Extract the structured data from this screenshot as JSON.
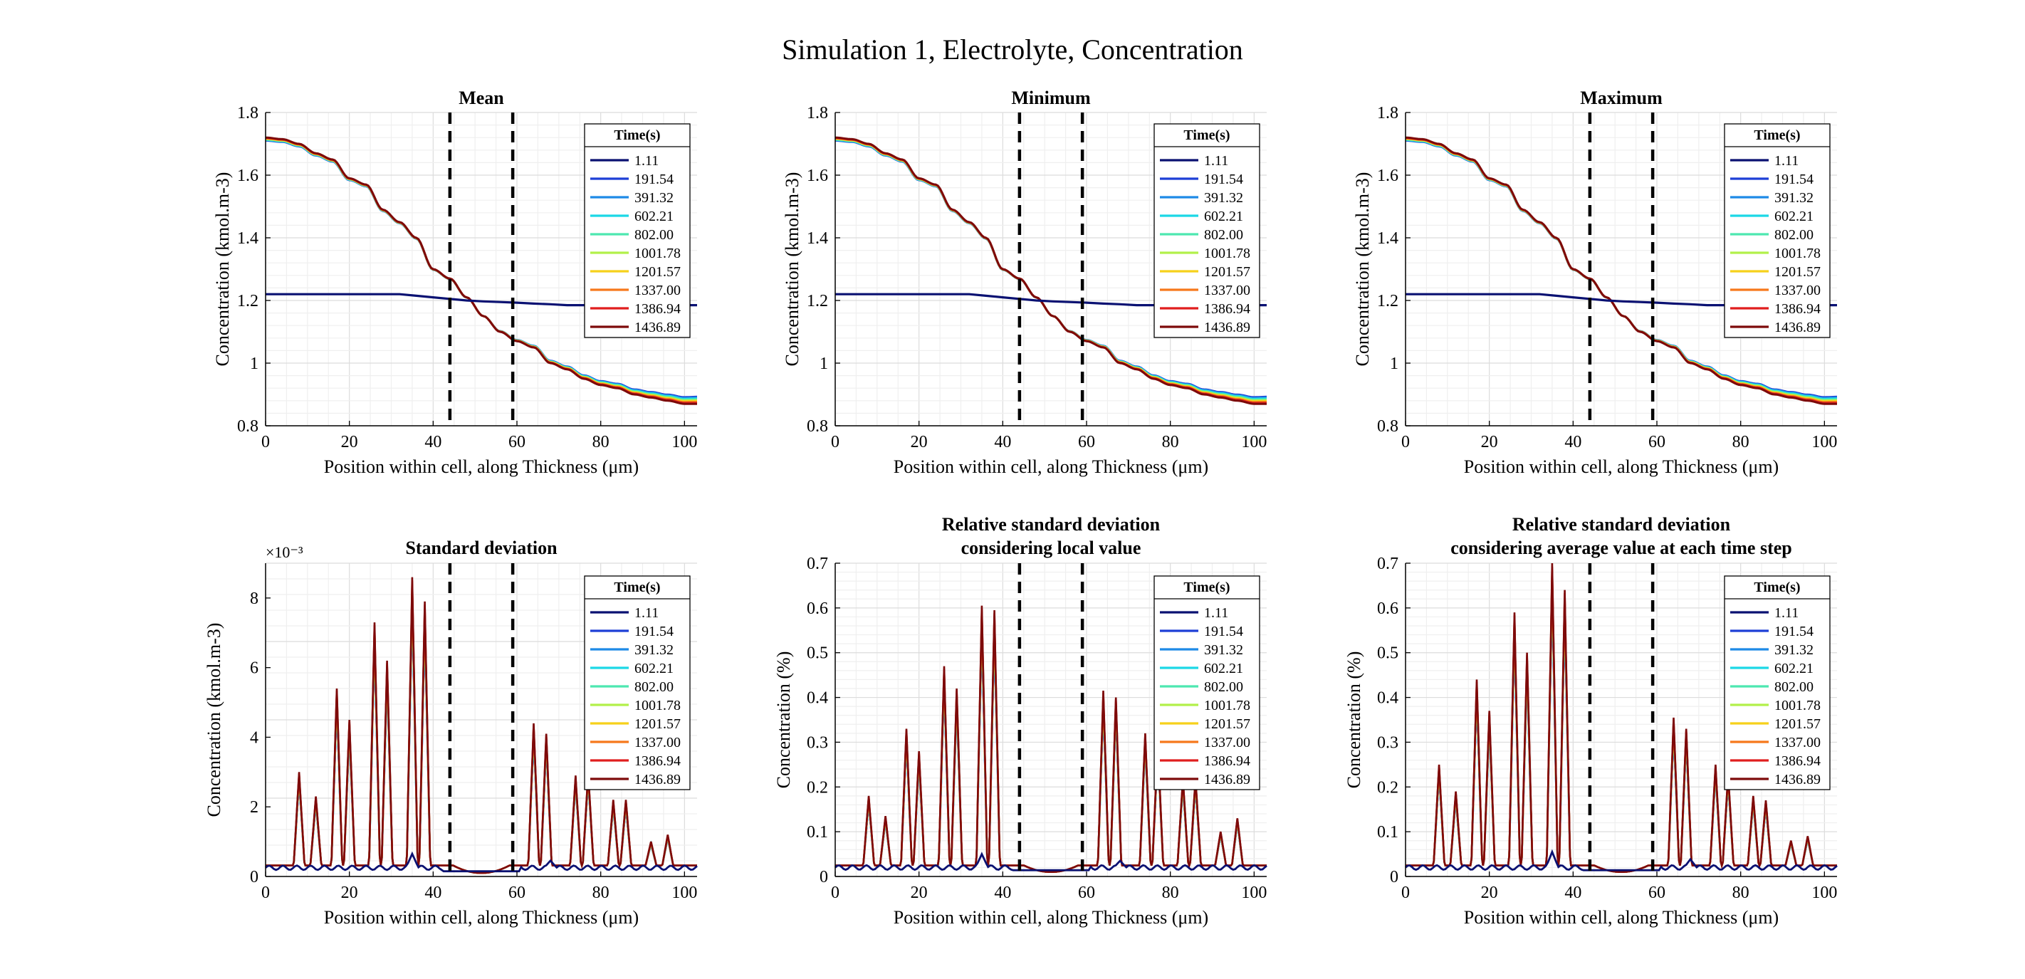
{
  "figure_title": "Simulation 1, Electrolyte, Concentration",
  "legend": {
    "title": "Time(s)",
    "entries": [
      "1.11",
      "191.54",
      "391.32",
      "602.21",
      "802.00",
      "1001.78",
      "1201.57",
      "1337.00",
      "1386.94",
      "1436.89"
    ],
    "colors": [
      "#0a1172",
      "#1d3fd6",
      "#1e8ae6",
      "#1bd8e6",
      "#4de8b0",
      "#b2f04a",
      "#f6d11b",
      "#f6781b",
      "#e01e1e",
      "#7d0a0a"
    ],
    "placement": "top-right"
  },
  "chart_data": [
    {
      "type": "line",
      "title": "Mean",
      "xlabel": "Position within cell, along Thickness (μm)",
      "ylabel": "Concentration (kmol.m-3)",
      "xlim": [
        0,
        103
      ],
      "ylim": [
        0.8,
        1.8
      ],
      "xticks": [
        "0",
        "20",
        "40",
        "60",
        "80",
        "100"
      ],
      "yticks": [
        "0.8",
        "1",
        "1.2",
        "1.4",
        "1.6",
        "1.8"
      ],
      "grid": true,
      "vlines": [
        44,
        59
      ],
      "kind": "conc",
      "x": [
        0,
        4,
        8,
        12,
        16,
        20,
        24,
        28,
        32,
        36,
        40,
        44,
        48,
        52,
        56,
        60,
        64,
        68,
        72,
        76,
        80,
        84,
        88,
        92,
        96,
        100,
        103
      ],
      "series": [
        {
          "name": "1.11",
          "values": [
            1.22,
            1.22,
            1.22,
            1.22,
            1.22,
            1.22,
            1.22,
            1.22,
            1.22,
            1.215,
            1.21,
            1.205,
            1.2,
            1.197,
            1.195,
            1.193,
            1.19,
            1.188,
            1.185,
            1.185,
            1.185,
            1.185,
            1.185,
            1.185,
            1.185,
            1.185,
            1.185
          ]
        },
        {
          "name": "1436.89",
          "values": [
            1.72,
            1.715,
            1.7,
            1.67,
            1.65,
            1.59,
            1.57,
            1.49,
            1.45,
            1.4,
            1.3,
            1.27,
            1.21,
            1.15,
            1.1,
            1.07,
            1.05,
            1.0,
            0.98,
            0.95,
            0.93,
            0.92,
            0.9,
            0.89,
            0.88,
            0.87,
            0.87
          ]
        }
      ]
    },
    {
      "type": "line",
      "title": "Minimum",
      "xlabel": "Position within cell, along Thickness (μm)",
      "ylabel": "Concentration (kmol.m-3)",
      "xlim": [
        0,
        103
      ],
      "ylim": [
        0.8,
        1.8
      ],
      "xticks": [
        "0",
        "20",
        "40",
        "60",
        "80",
        "100"
      ],
      "yticks": [
        "0.8",
        "1",
        "1.2",
        "1.4",
        "1.6",
        "1.8"
      ],
      "grid": true,
      "vlines": [
        44,
        59
      ],
      "kind": "conc",
      "x": [
        0,
        4,
        8,
        12,
        16,
        20,
        24,
        28,
        32,
        36,
        40,
        44,
        48,
        52,
        56,
        60,
        64,
        68,
        72,
        76,
        80,
        84,
        88,
        92,
        96,
        100,
        103
      ],
      "series": [
        {
          "name": "1.11",
          "values": [
            1.22,
            1.22,
            1.22,
            1.22,
            1.22,
            1.22,
            1.22,
            1.22,
            1.22,
            1.215,
            1.21,
            1.205,
            1.2,
            1.197,
            1.195,
            1.193,
            1.19,
            1.188,
            1.185,
            1.185,
            1.185,
            1.185,
            1.185,
            1.185,
            1.185,
            1.185,
            1.185
          ]
        },
        {
          "name": "1436.89",
          "values": [
            1.72,
            1.715,
            1.7,
            1.67,
            1.65,
            1.59,
            1.57,
            1.49,
            1.45,
            1.4,
            1.3,
            1.27,
            1.21,
            1.15,
            1.1,
            1.07,
            1.05,
            1.0,
            0.98,
            0.95,
            0.93,
            0.92,
            0.9,
            0.89,
            0.88,
            0.87,
            0.87
          ]
        }
      ]
    },
    {
      "type": "line",
      "title": "Maximum",
      "xlabel": "Position within cell, along Thickness (μm)",
      "ylabel": "Concentration (kmol.m-3)",
      "xlim": [
        0,
        103
      ],
      "ylim": [
        0.8,
        1.8
      ],
      "xticks": [
        "0",
        "20",
        "40",
        "60",
        "80",
        "100"
      ],
      "yticks": [
        "0.8",
        "1",
        "1.2",
        "1.4",
        "1.6",
        "1.8"
      ],
      "grid": true,
      "vlines": [
        44,
        59
      ],
      "kind": "conc",
      "x": [
        0,
        4,
        8,
        12,
        16,
        20,
        24,
        28,
        32,
        36,
        40,
        44,
        48,
        52,
        56,
        60,
        64,
        68,
        72,
        76,
        80,
        84,
        88,
        92,
        96,
        100,
        103
      ],
      "series": [
        {
          "name": "1.11",
          "values": [
            1.22,
            1.22,
            1.22,
            1.22,
            1.22,
            1.22,
            1.22,
            1.22,
            1.22,
            1.215,
            1.21,
            1.205,
            1.2,
            1.197,
            1.195,
            1.193,
            1.19,
            1.188,
            1.185,
            1.185,
            1.185,
            1.185,
            1.185,
            1.185,
            1.185,
            1.185,
            1.185
          ]
        },
        {
          "name": "1436.89",
          "values": [
            1.72,
            1.715,
            1.7,
            1.67,
            1.65,
            1.59,
            1.57,
            1.49,
            1.45,
            1.4,
            1.3,
            1.27,
            1.21,
            1.15,
            1.1,
            1.07,
            1.05,
            1.0,
            0.98,
            0.95,
            0.93,
            0.92,
            0.9,
            0.89,
            0.88,
            0.87,
            0.87
          ]
        }
      ]
    },
    {
      "type": "line",
      "title": "Standard deviation",
      "xlabel": "Position within cell, along Thickness (μm)",
      "ylabel": "Concentration (kmol.m-3)",
      "exponent": "×10⁻³",
      "xlim": [
        0,
        103
      ],
      "ylim": [
        0,
        9
      ],
      "xticks": [
        "0",
        "20",
        "40",
        "60",
        "80",
        "100"
      ],
      "yticks": [
        "0",
        "2",
        "4",
        "6",
        "8"
      ],
      "grid": true,
      "vlines": [
        44,
        59
      ],
      "kind": "spike",
      "peaks": [
        {
          "x": 8,
          "value": 3.0
        },
        {
          "x": 12,
          "value": 2.3
        },
        {
          "x": 17,
          "value": 5.4
        },
        {
          "x": 20,
          "value": 4.5
        },
        {
          "x": 26,
          "value": 7.3
        },
        {
          "x": 29,
          "value": 6.2
        },
        {
          "x": 35,
          "value": 8.6
        },
        {
          "x": 38,
          "value": 7.9
        },
        {
          "x": 64,
          "value": 4.4
        },
        {
          "x": 67,
          "value": 4.1
        },
        {
          "x": 74,
          "value": 2.9
        },
        {
          "x": 77,
          "value": 3.0
        },
        {
          "x": 83,
          "value": 2.2
        },
        {
          "x": 86,
          "value": 2.2
        },
        {
          "x": 92,
          "value": 1.0
        },
        {
          "x": 96,
          "value": 1.2
        }
      ],
      "valley": {
        "from": 44,
        "to": 59,
        "min": 0.1
      },
      "baseline_series": {
        "name": "1.11",
        "level": 0.25,
        "peak": 0.65,
        "peak_x": 35
      }
    },
    {
      "type": "line",
      "title": "Relative standard deviation considering local value",
      "title_lines": [
        "Relative standard deviation",
        "considering local value"
      ],
      "xlabel": "Position within cell, along Thickness (μm)",
      "ylabel": "Concentration (%)",
      "xlim": [
        0,
        103
      ],
      "ylim": [
        0,
        0.7
      ],
      "xticks": [
        "0",
        "20",
        "40",
        "60",
        "80",
        "100"
      ],
      "yticks": [
        "0",
        "0.1",
        "0.2",
        "0.3",
        "0.4",
        "0.5",
        "0.6",
        "0.7"
      ],
      "grid": true,
      "vlines": [
        44,
        59
      ],
      "kind": "spike",
      "peaks": [
        {
          "x": 8,
          "value": 0.18
        },
        {
          "x": 12,
          "value": 0.135
        },
        {
          "x": 17,
          "value": 0.33
        },
        {
          "x": 20,
          "value": 0.28
        },
        {
          "x": 26,
          "value": 0.47
        },
        {
          "x": 29,
          "value": 0.42
        },
        {
          "x": 35,
          "value": 0.605
        },
        {
          "x": 38,
          "value": 0.595
        },
        {
          "x": 64,
          "value": 0.415
        },
        {
          "x": 67,
          "value": 0.4
        },
        {
          "x": 74,
          "value": 0.32
        },
        {
          "x": 77,
          "value": 0.3
        },
        {
          "x": 83,
          "value": 0.22
        },
        {
          "x": 86,
          "value": 0.22
        },
        {
          "x": 92,
          "value": 0.1
        },
        {
          "x": 96,
          "value": 0.13
        }
      ],
      "valley": {
        "from": 44,
        "to": 59,
        "min": 0.01
      },
      "baseline_series": {
        "name": "1.11",
        "level": 0.02,
        "peak": 0.05,
        "peak_x": 35
      }
    },
    {
      "type": "line",
      "title": "Relative standard deviation considering average value at each time step",
      "title_lines": [
        "Relative standard deviation",
        "considering average value at each time step"
      ],
      "xlabel": "Position within cell, along Thickness (μm)",
      "ylabel": "Concentration (%)",
      "xlim": [
        0,
        103
      ],
      "ylim": [
        0,
        0.7
      ],
      "xticks": [
        "0",
        "20",
        "40",
        "60",
        "80",
        "100"
      ],
      "yticks": [
        "0",
        "0.1",
        "0.2",
        "0.3",
        "0.4",
        "0.5",
        "0.6",
        "0.7"
      ],
      "grid": true,
      "vlines": [
        44,
        59
      ],
      "kind": "spike",
      "peaks": [
        {
          "x": 8,
          "value": 0.25
        },
        {
          "x": 12,
          "value": 0.19
        },
        {
          "x": 17,
          "value": 0.44
        },
        {
          "x": 20,
          "value": 0.37
        },
        {
          "x": 26,
          "value": 0.59
        },
        {
          "x": 29,
          "value": 0.5
        },
        {
          "x": 35,
          "value": 0.7
        },
        {
          "x": 38,
          "value": 0.64
        },
        {
          "x": 64,
          "value": 0.355
        },
        {
          "x": 67,
          "value": 0.33
        },
        {
          "x": 74,
          "value": 0.25
        },
        {
          "x": 77,
          "value": 0.23
        },
        {
          "x": 83,
          "value": 0.18
        },
        {
          "x": 86,
          "value": 0.17
        },
        {
          "x": 92,
          "value": 0.08
        },
        {
          "x": 96,
          "value": 0.09
        }
      ],
      "valley": {
        "from": 44,
        "to": 59,
        "min": 0.01
      },
      "baseline_series": {
        "name": "1.11",
        "level": 0.02,
        "peak": 0.055,
        "peak_x": 35
      }
    }
  ]
}
